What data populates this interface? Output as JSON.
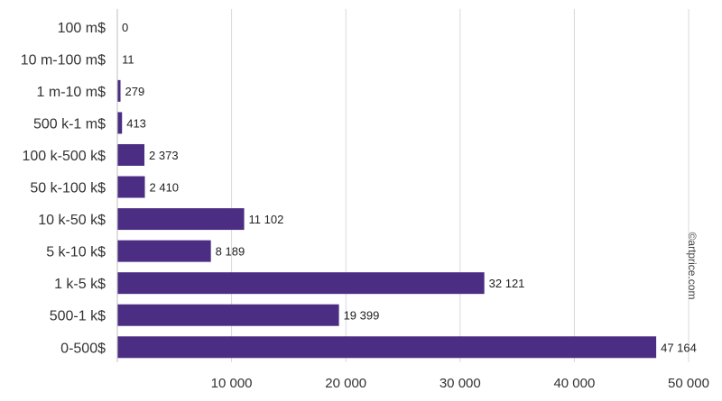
{
  "chart_data": {
    "type": "bar",
    "orientation": "horizontal",
    "categories": [
      "100 m$",
      "10 m-100 m$",
      "1 m-10 m$",
      "500 k-1 m$",
      "100 k-500 k$",
      "50 k-100 k$",
      "10 k-50 k$",
      "5 k-10 k$",
      "1 k-5 k$",
      "500-1 k$",
      "0-500$"
    ],
    "values": [
      0,
      11,
      279,
      413,
      2373,
      2410,
      11102,
      8189,
      32121,
      19399,
      47164
    ],
    "data_labels": [
      "0",
      "11",
      "279",
      "413",
      "2 373",
      "2 410",
      "11 102",
      "8 189",
      "32 121",
      "19 399",
      "47 164"
    ],
    "xlim": [
      0,
      50000
    ],
    "xticks": [
      10000,
      20000,
      30000,
      40000,
      50000
    ],
    "xtick_labels": [
      "10 000",
      "20 000",
      "30 000",
      "40 000",
      "50 000"
    ],
    "grid": "vertical",
    "bar_color": "#4b2e83",
    "title": "",
    "xlabel": "",
    "ylabel": ""
  },
  "watermark": "©artprice.com"
}
